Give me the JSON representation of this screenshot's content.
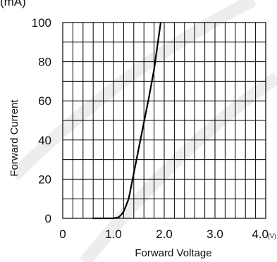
{
  "chart_data": {
    "type": "line",
    "title": "",
    "xlabel": "Forward  Voltage",
    "ylabel": "Forward Current",
    "x_unit": "(V)",
    "y_unit_partial": "(mA)",
    "xlim": [
      0,
      4.0
    ],
    "ylim": [
      0,
      100
    ],
    "x_minor_step": 0.2,
    "y_minor_step": 10,
    "x_ticks": [
      {
        "value": 0,
        "label": "0"
      },
      {
        "value": 1.0,
        "label": "1.0"
      },
      {
        "value": 2.0,
        "label": "2.0"
      },
      {
        "value": 3.0,
        "label": "3.0"
      },
      {
        "value": 4.0,
        "label": "4.0"
      }
    ],
    "y_ticks": [
      {
        "value": 0,
        "label": "0"
      },
      {
        "value": 20,
        "label": "20"
      },
      {
        "value": 40,
        "label": "40"
      },
      {
        "value": 60,
        "label": "60"
      },
      {
        "value": 80,
        "label": "80"
      },
      {
        "value": 100,
        "label": "100"
      }
    ],
    "grid": true,
    "legend": "none",
    "series": [
      {
        "x": [
          0.6,
          1.0,
          1.1,
          1.16,
          1.2,
          1.24,
          1.3,
          1.4,
          1.5,
          1.6,
          1.7,
          1.8,
          1.93
        ],
        "y": [
          0,
          0,
          0.5,
          2,
          3.5,
          6,
          10,
          23,
          36,
          49,
          62,
          76,
          100
        ]
      }
    ]
  }
}
